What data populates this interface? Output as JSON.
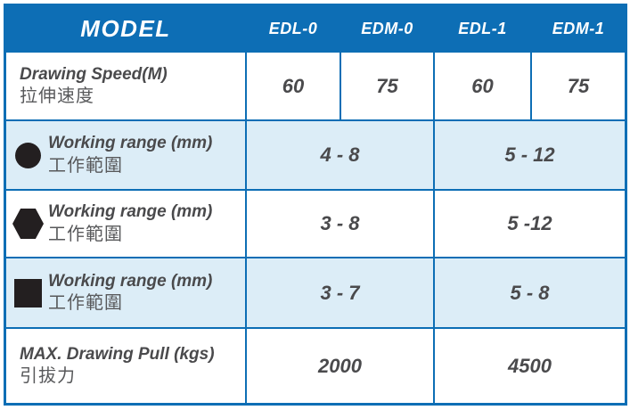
{
  "table": {
    "header": {
      "model_label": "MODEL",
      "columns": [
        "EDL-0",
        "EDM-0",
        "EDL-1",
        "EDM-1"
      ]
    },
    "rows": [
      {
        "label_en": "Drawing Speed(M)",
        "label_zh": "拉伸速度",
        "icon": null,
        "values": [
          "60",
          "75",
          "60",
          "75"
        ]
      },
      {
        "label_en": "Working range (mm)",
        "label_zh": "工作範圍",
        "icon": "circle",
        "values": [
          "4 - 8",
          "5 - 12"
        ]
      },
      {
        "label_en": "Working range (mm)",
        "label_zh": "工作範圍",
        "icon": "hexagon",
        "values": [
          "3 - 8",
          "5 -12"
        ]
      },
      {
        "label_en": "Working range (mm)",
        "label_zh": "工作範圍",
        "icon": "square",
        "values": [
          "3 - 7",
          "5 - 8"
        ]
      },
      {
        "label_en": "MAX. Drawing Pull (kgs)",
        "label_zh": "引拔力",
        "icon": null,
        "values": [
          "2000",
          "4500"
        ]
      }
    ]
  },
  "colors": {
    "header_blue": "#0d6eb5",
    "grid_line_blue": "#0d6eb5",
    "alt_row_blue": "#dcedf7",
    "text_dark": "#4a4a4c",
    "text_gray": "#58595b",
    "icon_black": "#231f20"
  }
}
